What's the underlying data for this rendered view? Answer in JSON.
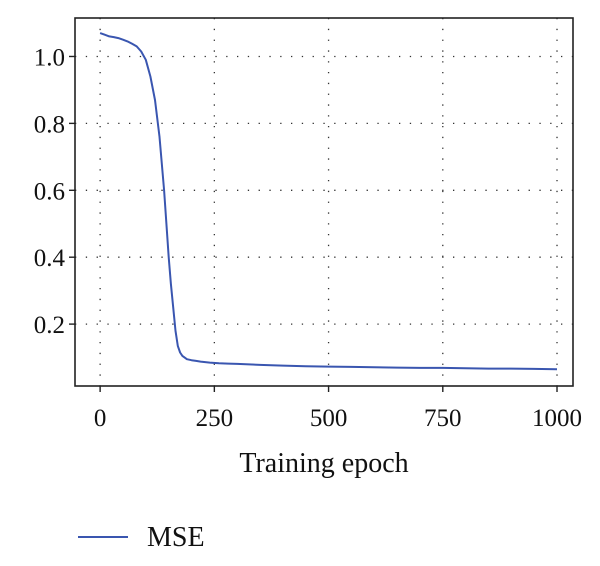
{
  "chart_data": {
    "type": "line",
    "title": "",
    "xlabel": "Training epoch",
    "ylabel": "",
    "xlim": [
      -55,
      1035
    ],
    "ylim": [
      0.015,
      1.115
    ],
    "x_ticks": [
      0,
      250,
      500,
      750,
      1000
    ],
    "x_tick_labels": [
      "0",
      "250",
      "500",
      "750",
      "1000"
    ],
    "y_ticks": [
      0.2,
      0.4,
      0.6,
      0.8,
      1.0
    ],
    "y_tick_labels": [
      "0.2",
      "0.4",
      "0.6",
      "0.8",
      "1.0"
    ],
    "grid": "dotted",
    "legend_position": "bottom-left",
    "series": [
      {
        "name": "MSE",
        "color": "#3a56b0",
        "x": [
          0,
          10,
          20,
          30,
          40,
          50,
          60,
          70,
          80,
          90,
          100,
          110,
          120,
          130,
          140,
          145,
          150,
          155,
          160,
          165,
          170,
          175,
          180,
          185,
          190,
          200,
          210,
          220,
          240,
          260,
          280,
          300,
          350,
          400,
          450,
          500,
          550,
          600,
          650,
          700,
          750,
          800,
          850,
          900,
          950,
          1000
        ],
        "y": [
          1.07,
          1.065,
          1.06,
          1.058,
          1.055,
          1.05,
          1.045,
          1.038,
          1.03,
          1.015,
          0.99,
          0.94,
          0.87,
          0.76,
          0.6,
          0.5,
          0.4,
          0.32,
          0.25,
          0.18,
          0.135,
          0.115,
          0.105,
          0.1,
          0.095,
          0.092,
          0.09,
          0.088,
          0.085,
          0.083,
          0.082,
          0.081,
          0.078,
          0.076,
          0.074,
          0.073,
          0.072,
          0.071,
          0.07,
          0.069,
          0.069,
          0.068,
          0.067,
          0.067,
          0.066,
          0.065
        ]
      }
    ]
  }
}
